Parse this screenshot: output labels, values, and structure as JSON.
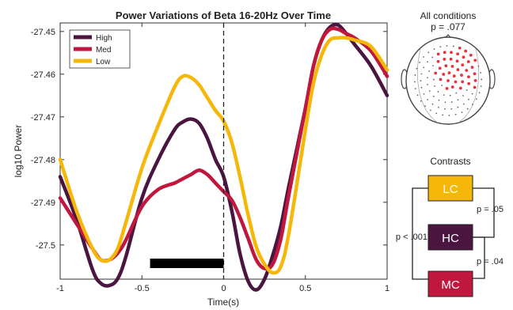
{
  "chart_data": {
    "type": "line",
    "title": "Power Variations of Beta 16-20Hz Over Time",
    "xlabel": "Time(s)",
    "ylabel": "log10 Power",
    "xlim": [
      -1,
      1
    ],
    "ylim": [
      -27.508,
      -27.448
    ],
    "xticks": [
      -1,
      -0.5,
      0,
      0.5,
      1
    ],
    "xtick_labels": [
      "-1",
      "-0.5",
      "0",
      "0.5",
      "1"
    ],
    "yticks": [
      -27.45,
      -27.46,
      -27.47,
      -27.48,
      -27.49,
      -27.5
    ],
    "ytick_labels": [
      "-27.45",
      "-27.46",
      "-27.47",
      "-27.48",
      "-27.49",
      "-27.5"
    ],
    "grid": false,
    "legend_position": "top-left",
    "vline_x": 0,
    "significance_bar": {
      "x_start": -0.45,
      "x_end": 0.0
    },
    "series": [
      {
        "name": "High",
        "color": "#4a1540",
        "x": [
          -1.0,
          -0.9,
          -0.8,
          -0.75,
          -0.7,
          -0.65,
          -0.6,
          -0.5,
          -0.4,
          -0.3,
          -0.25,
          -0.2,
          -0.15,
          -0.1,
          -0.05,
          0.0,
          0.05,
          0.1,
          0.15,
          0.2,
          0.25,
          0.3,
          0.35,
          0.4,
          0.5,
          0.55,
          0.6,
          0.65,
          0.7,
          0.75,
          0.8,
          0.9,
          1.0
        ],
        "values": [
          -27.484,
          -27.494,
          -27.506,
          -27.509,
          -27.5095,
          -27.508,
          -27.503,
          -27.489,
          -27.48,
          -27.473,
          -27.4712,
          -27.4705,
          -27.4715,
          -27.475,
          -27.48,
          -27.484,
          -27.492,
          -27.502,
          -27.5085,
          -27.5105,
          -27.508,
          -27.5025,
          -27.4955,
          -27.486,
          -27.468,
          -27.458,
          -27.452,
          -27.449,
          -27.4485,
          -27.4505,
          -27.453,
          -27.458,
          -27.465
        ]
      },
      {
        "name": "Med",
        "color": "#c0173e",
        "x": [
          -1.0,
          -0.9,
          -0.8,
          -0.75,
          -0.7,
          -0.65,
          -0.6,
          -0.5,
          -0.4,
          -0.3,
          -0.25,
          -0.2,
          -0.15,
          -0.1,
          -0.05,
          0.0,
          0.05,
          0.1,
          0.15,
          0.2,
          0.25,
          0.3,
          0.35,
          0.4,
          0.5,
          0.55,
          0.6,
          0.65,
          0.7,
          0.75,
          0.8,
          0.9,
          1.0
        ],
        "values": [
          -27.489,
          -27.495,
          -27.501,
          -27.5035,
          -27.5035,
          -27.502,
          -27.499,
          -27.491,
          -27.487,
          -27.4855,
          -27.4845,
          -27.4835,
          -27.4825,
          -27.4835,
          -27.4855,
          -27.4875,
          -27.4895,
          -27.4935,
          -27.4985,
          -27.5035,
          -27.5055,
          -27.5045,
          -27.4985,
          -27.488,
          -27.468,
          -27.458,
          -27.452,
          -27.4495,
          -27.4495,
          -27.4505,
          -27.4515,
          -27.4545,
          -27.4605
        ]
      },
      {
        "name": "Low",
        "color": "#f5b80a",
        "x": [
          -1.0,
          -0.9,
          -0.8,
          -0.75,
          -0.7,
          -0.65,
          -0.6,
          -0.5,
          -0.4,
          -0.3,
          -0.25,
          -0.2,
          -0.15,
          -0.1,
          -0.05,
          0.0,
          0.05,
          0.1,
          0.15,
          0.2,
          0.25,
          0.3,
          0.35,
          0.4,
          0.5,
          0.55,
          0.6,
          0.65,
          0.7,
          0.75,
          0.8,
          0.9,
          1.0
        ],
        "values": [
          -27.48,
          -27.492,
          -27.501,
          -27.5035,
          -27.5035,
          -27.501,
          -27.495,
          -27.482,
          -27.472,
          -27.463,
          -27.4605,
          -27.4608,
          -27.4625,
          -27.4655,
          -27.4685,
          -27.471,
          -27.476,
          -27.484,
          -27.493,
          -27.5005,
          -27.5045,
          -27.5065,
          -27.505,
          -27.497,
          -27.473,
          -27.462,
          -27.4555,
          -27.452,
          -27.4515,
          -27.4515,
          -27.452,
          -27.4535,
          -27.459
        ]
      }
    ]
  },
  "topomap": {
    "title": "All conditions",
    "pvalue": "p = .077",
    "dot_color": "#e8323c"
  },
  "contrasts": {
    "title": "Contrasts",
    "boxes": [
      {
        "label": "LC",
        "color": "#f5b80a"
      },
      {
        "label": "HC",
        "color": "#4a1540"
      },
      {
        "label": "MC",
        "color": "#c0173e"
      }
    ],
    "p_left": "p < .001",
    "p_top": "p = .05",
    "p_bottom": "p = .04"
  }
}
